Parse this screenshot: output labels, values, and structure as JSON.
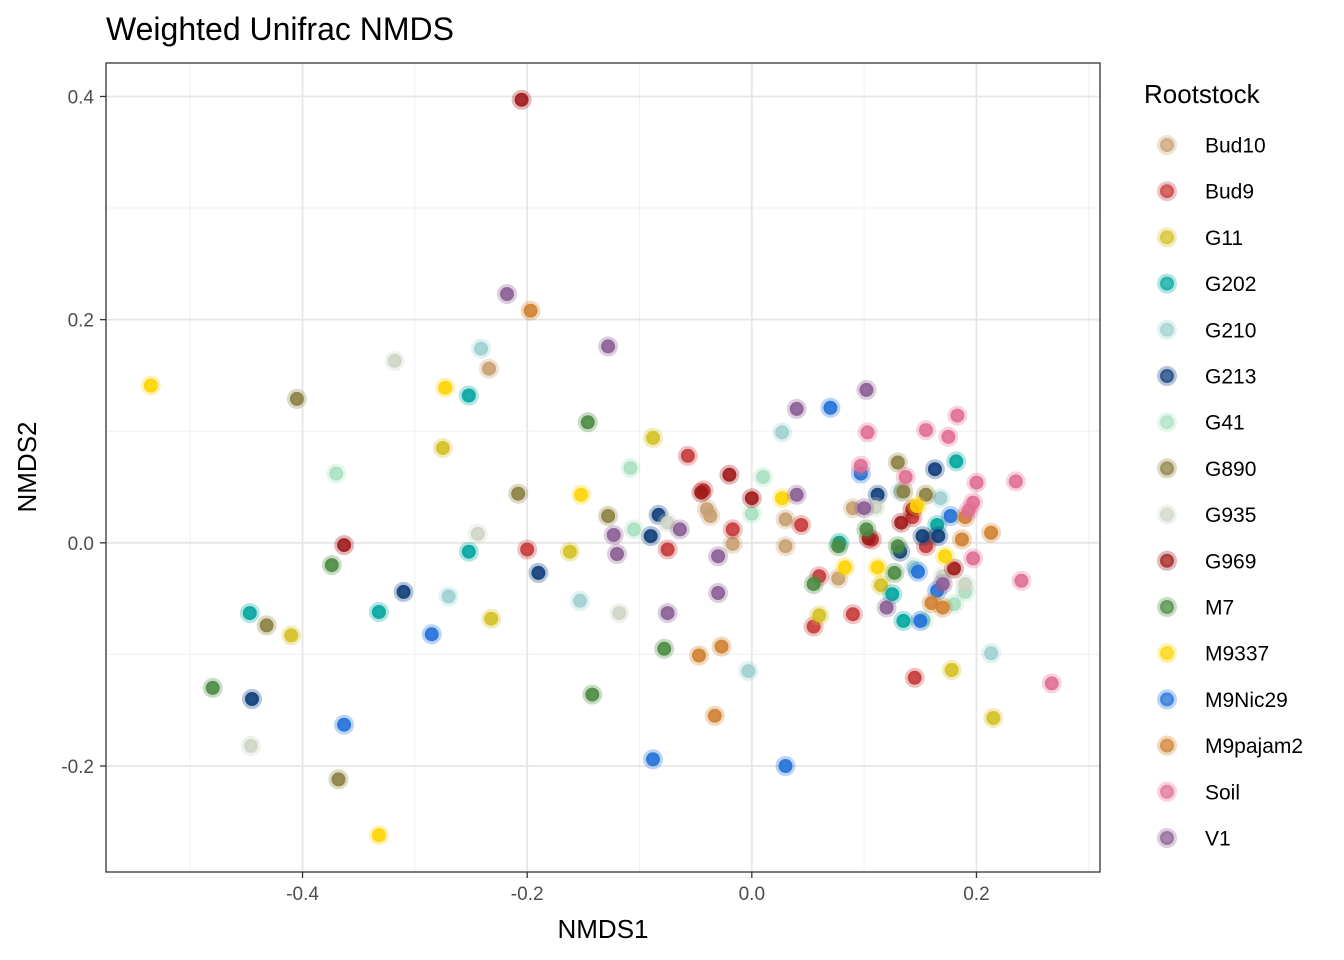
{
  "chart_data": {
    "type": "scatter",
    "title": "Weighted Unifrac NMDS",
    "xlabel": "NMDS1",
    "ylabel": "NMDS2",
    "xlim": [
      -0.575,
      0.31
    ],
    "ylim": [
      -0.295,
      0.43
    ],
    "x_ticks": [
      -0.4,
      -0.2,
      0.0,
      0.2
    ],
    "y_ticks": [
      -0.2,
      0.0,
      0.2,
      0.4
    ],
    "x_tick_labels": [
      "-0.4",
      "-0.2",
      "0.0",
      "0.2"
    ],
    "y_tick_labels": [
      "-0.2",
      "0.0",
      "0.2",
      "0.4"
    ],
    "grid": true,
    "legend": {
      "title": "Rootstock",
      "position": "right"
    },
    "series": [
      {
        "name": "Bud10",
        "color": "#C8A070",
        "points": [
          [
            -0.234,
            0.156
          ],
          [
            -0.04,
            0.03
          ],
          [
            -0.037,
            0.024
          ],
          [
            -0.017,
            -0.001
          ],
          [
            0.03,
            0.021
          ],
          [
            0.03,
            -0.003
          ],
          [
            0.077,
            -0.032
          ],
          [
            0.09,
            0.031
          ],
          [
            0.158,
            0.004
          ]
        ]
      },
      {
        "name": "Bud9",
        "color": "#C83737",
        "points": [
          [
            -0.2,
            -0.006
          ],
          [
            -0.075,
            -0.006
          ],
          [
            -0.057,
            0.078
          ],
          [
            -0.043,
            0.047
          ],
          [
            -0.017,
            0.012
          ],
          [
            0.044,
            0.016
          ],
          [
            0.055,
            -0.075
          ],
          [
            0.06,
            -0.03
          ],
          [
            0.09,
            -0.064
          ],
          [
            0.107,
            0.003
          ],
          [
            0.143,
            0.023
          ],
          [
            0.145,
            -0.121
          ],
          [
            0.155,
            -0.003
          ]
        ]
      },
      {
        "name": "G11",
        "color": "#D4C020",
        "points": [
          [
            -0.41,
            -0.083
          ],
          [
            -0.275,
            0.085
          ],
          [
            -0.232,
            -0.068
          ],
          [
            -0.162,
            -0.008
          ],
          [
            -0.088,
            0.094
          ],
          [
            0.06,
            -0.065
          ],
          [
            0.115,
            -0.038
          ],
          [
            0.178,
            -0.114
          ],
          [
            0.215,
            -0.157
          ]
        ]
      },
      {
        "name": "G202",
        "color": "#00A5A0",
        "points": [
          [
            -0.447,
            -0.063
          ],
          [
            -0.332,
            -0.062
          ],
          [
            -0.252,
            0.132
          ],
          [
            -0.252,
            -0.008
          ],
          [
            0.078,
            0.0
          ],
          [
            0.125,
            -0.046
          ],
          [
            0.135,
            -0.07
          ],
          [
            0.165,
            0.016
          ],
          [
            0.182,
            0.073
          ]
        ]
      },
      {
        "name": "G210",
        "color": "#9ECFD0",
        "points": [
          [
            -0.241,
            0.174
          ],
          [
            -0.27,
            -0.048
          ],
          [
            -0.153,
            -0.052
          ],
          [
            -0.003,
            -0.115
          ],
          [
            0.027,
            0.099
          ],
          [
            0.132,
            0.046
          ],
          [
            0.144,
            -0.022
          ],
          [
            0.168,
            0.04
          ],
          [
            0.213,
            -0.099
          ]
        ]
      },
      {
        "name": "G213",
        "color": "#0D3D7A",
        "points": [
          [
            -0.445,
            -0.14
          ],
          [
            -0.31,
            -0.044
          ],
          [
            -0.19,
            -0.027
          ],
          [
            -0.09,
            0.006
          ],
          [
            -0.083,
            0.025
          ],
          [
            0.112,
            0.043
          ],
          [
            0.132,
            -0.008
          ],
          [
            0.152,
            0.006
          ],
          [
            0.163,
            0.066
          ],
          [
            0.166,
            0.006
          ]
        ]
      },
      {
        "name": "G41",
        "color": "#A8E0C0",
        "points": [
          [
            -0.37,
            0.062
          ],
          [
            -0.105,
            0.012
          ],
          [
            -0.108,
            0.067
          ],
          [
            0.0,
            0.026
          ],
          [
            0.01,
            0.059
          ],
          [
            0.153,
            -0.069
          ],
          [
            0.18,
            -0.055
          ],
          [
            0.19,
            -0.044
          ]
        ]
      },
      {
        "name": "G890",
        "color": "#8A8040",
        "points": [
          [
            -0.405,
            0.129
          ],
          [
            -0.432,
            -0.074
          ],
          [
            -0.368,
            -0.212
          ],
          [
            -0.208,
            0.044
          ],
          [
            -0.128,
            0.024
          ],
          [
            0.13,
            0.072
          ],
          [
            0.135,
            0.046
          ],
          [
            0.155,
            0.043
          ]
        ]
      },
      {
        "name": "G935",
        "color": "#CED5C5",
        "points": [
          [
            -0.446,
            -0.182
          ],
          [
            -0.318,
            0.163
          ],
          [
            -0.244,
            0.008
          ],
          [
            -0.118,
            -0.063
          ],
          [
            -0.075,
            0.018
          ],
          [
            0.11,
            0.032
          ],
          [
            0.17,
            -0.03
          ],
          [
            0.19,
            -0.037
          ]
        ]
      },
      {
        "name": "G969",
        "color": "#A01818",
        "points": [
          [
            -0.205,
            0.397
          ],
          [
            -0.363,
            -0.002
          ],
          [
            -0.045,
            0.045
          ],
          [
            -0.02,
            0.061
          ],
          [
            0.0,
            0.04
          ],
          [
            0.104,
            0.004
          ],
          [
            0.133,
            0.018
          ],
          [
            0.143,
            0.03
          ],
          [
            0.18,
            -0.023
          ]
        ]
      },
      {
        "name": "M7",
        "color": "#4A8A40",
        "points": [
          [
            -0.48,
            -0.13
          ],
          [
            -0.374,
            -0.02
          ],
          [
            -0.146,
            0.108
          ],
          [
            -0.142,
            -0.136
          ],
          [
            -0.078,
            -0.095
          ],
          [
            0.055,
            -0.037
          ],
          [
            0.077,
            -0.003
          ],
          [
            0.102,
            0.012
          ],
          [
            0.127,
            -0.027
          ],
          [
            0.13,
            -0.003
          ]
        ]
      },
      {
        "name": "M9337",
        "color": "#FFD500",
        "points": [
          [
            -0.535,
            0.141
          ],
          [
            -0.332,
            -0.262
          ],
          [
            -0.273,
            0.139
          ],
          [
            -0.152,
            0.043
          ],
          [
            0.027,
            0.04
          ],
          [
            0.083,
            -0.022
          ],
          [
            0.112,
            -0.022
          ],
          [
            0.147,
            0.033
          ],
          [
            0.172,
            -0.012
          ]
        ]
      },
      {
        "name": "M9Nic29",
        "color": "#1F6FD8",
        "points": [
          [
            -0.363,
            -0.163
          ],
          [
            -0.285,
            -0.082
          ],
          [
            -0.088,
            -0.194
          ],
          [
            0.03,
            -0.2
          ],
          [
            0.07,
            0.121
          ],
          [
            0.097,
            0.062
          ],
          [
            0.148,
            -0.026
          ],
          [
            0.15,
            -0.07
          ],
          [
            0.165,
            -0.043
          ],
          [
            0.177,
            0.024
          ]
        ]
      },
      {
        "name": "M9pajam2",
        "color": "#D08030",
        "points": [
          [
            -0.197,
            0.208
          ],
          [
            -0.047,
            -0.101
          ],
          [
            -0.027,
            -0.093
          ],
          [
            -0.033,
            -0.155
          ],
          [
            0.16,
            -0.054
          ],
          [
            0.17,
            -0.058
          ],
          [
            0.187,
            0.003
          ],
          [
            0.19,
            0.023
          ],
          [
            0.213,
            0.009
          ]
        ]
      },
      {
        "name": "Soil",
        "color": "#E06E92",
        "points": [
          [
            0.097,
            0.069
          ],
          [
            0.103,
            0.099
          ],
          [
            0.137,
            0.059
          ],
          [
            0.155,
            0.101
          ],
          [
            0.175,
            0.095
          ],
          [
            0.183,
            0.114
          ],
          [
            0.2,
            0.054
          ],
          [
            0.235,
            0.055
          ],
          [
            0.197,
            0.036
          ],
          [
            0.193,
            0.029
          ],
          [
            0.197,
            -0.014
          ],
          [
            0.24,
            -0.034
          ],
          [
            0.267,
            -0.126
          ]
        ]
      },
      {
        "name": "V1",
        "color": "#8A5C94",
        "points": [
          [
            -0.218,
            0.223
          ],
          [
            -0.128,
            0.176
          ],
          [
            -0.123,
            0.007
          ],
          [
            -0.12,
            -0.01
          ],
          [
            -0.075,
            -0.063
          ],
          [
            -0.064,
            0.012
          ],
          [
            -0.03,
            -0.012
          ],
          [
            -0.03,
            -0.045
          ],
          [
            0.04,
            0.12
          ],
          [
            0.04,
            0.043
          ],
          [
            0.102,
            0.137
          ],
          [
            0.1,
            0.031
          ],
          [
            0.12,
            -0.058
          ],
          [
            0.17,
            -0.037
          ]
        ]
      }
    ]
  }
}
